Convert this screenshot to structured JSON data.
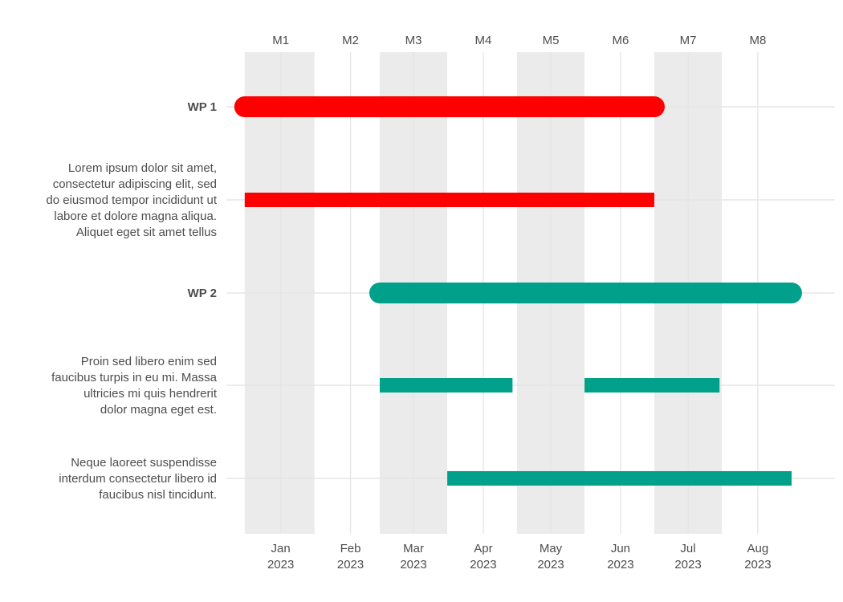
{
  "chart_data": {
    "type": "gantt",
    "title": "",
    "xlabel": "",
    "ylabel": "",
    "top_axis": {
      "labels": [
        "M1",
        "M2",
        "M3",
        "M4",
        "M5",
        "M6",
        "M7",
        "M8"
      ],
      "dates": [
        "2023-01-01",
        "2023-02-01",
        "2023-03-01",
        "2023-04-01",
        "2023-05-01",
        "2023-06-01",
        "2023-07-01",
        "2023-08-01"
      ]
    },
    "bottom_axis": {
      "months": [
        "Jan",
        "Feb",
        "Mar",
        "Apr",
        "May",
        "Jun",
        "Jul",
        "Aug"
      ],
      "years": [
        "2023",
        "2023",
        "2023",
        "2023",
        "2023",
        "2023",
        "2023",
        "2023"
      ],
      "dates": [
        "2023-01-01",
        "2023-02-01",
        "2023-03-01",
        "2023-04-01",
        "2023-05-01",
        "2023-06-01",
        "2023-07-01",
        "2023-08-01"
      ]
    },
    "xlim": [
      "2022-12-15",
      "2023-08-31"
    ],
    "shaded_bands": [
      {
        "start": "2022-12-16",
        "end": "2023-01-16"
      },
      {
        "start": "2023-02-14",
        "end": "2023-03-16"
      },
      {
        "start": "2023-04-16",
        "end": "2023-05-16"
      },
      {
        "start": "2023-06-16",
        "end": "2023-07-16"
      }
    ],
    "colors": {
      "wp1": "#ff0000",
      "wp2": "#00a08a",
      "band": "#ebebeb",
      "grid": "#e6e6e6",
      "text": "#4d4d4d"
    },
    "rows": [
      {
        "label": "WP 1",
        "kind": "wp",
        "color": "#ff0000",
        "segments": [
          {
            "start": "2022-12-16",
            "end": "2023-06-16"
          }
        ]
      },
      {
        "label_lines": [
          "Lorem ipsum dolor sit amet,",
          "consectetur adipiscing elit, sed",
          "do eiusmod tempor incididunt ut",
          "labore et dolore magna aliqua.",
          "Aliquet eget sit amet tellus"
        ],
        "kind": "task",
        "color": "#ff0000",
        "segments": [
          {
            "start": "2022-12-16",
            "end": "2023-06-16"
          }
        ]
      },
      {
        "label": "WP 2",
        "kind": "wp",
        "color": "#00a08a",
        "segments": [
          {
            "start": "2023-02-14",
            "end": "2023-08-16"
          }
        ]
      },
      {
        "label_lines": [
          "Proin sed libero enim sed",
          "faucibus turpis in eu mi. Massa",
          "ultricies mi quis hendrerit",
          "dolor magna eget est."
        ],
        "kind": "task",
        "color": "#00a08a",
        "segments": [
          {
            "start": "2023-02-14",
            "end": "2023-04-14"
          },
          {
            "start": "2023-05-16",
            "end": "2023-07-15"
          }
        ]
      },
      {
        "label_lines": [
          "Neque laoreet suspendisse",
          "interdum consectetur libero id",
          "faucibus nisl tincidunt."
        ],
        "kind": "task",
        "color": "#00a08a",
        "segments": [
          {
            "start": "2023-03-16",
            "end": "2023-08-16"
          }
        ]
      }
    ]
  }
}
